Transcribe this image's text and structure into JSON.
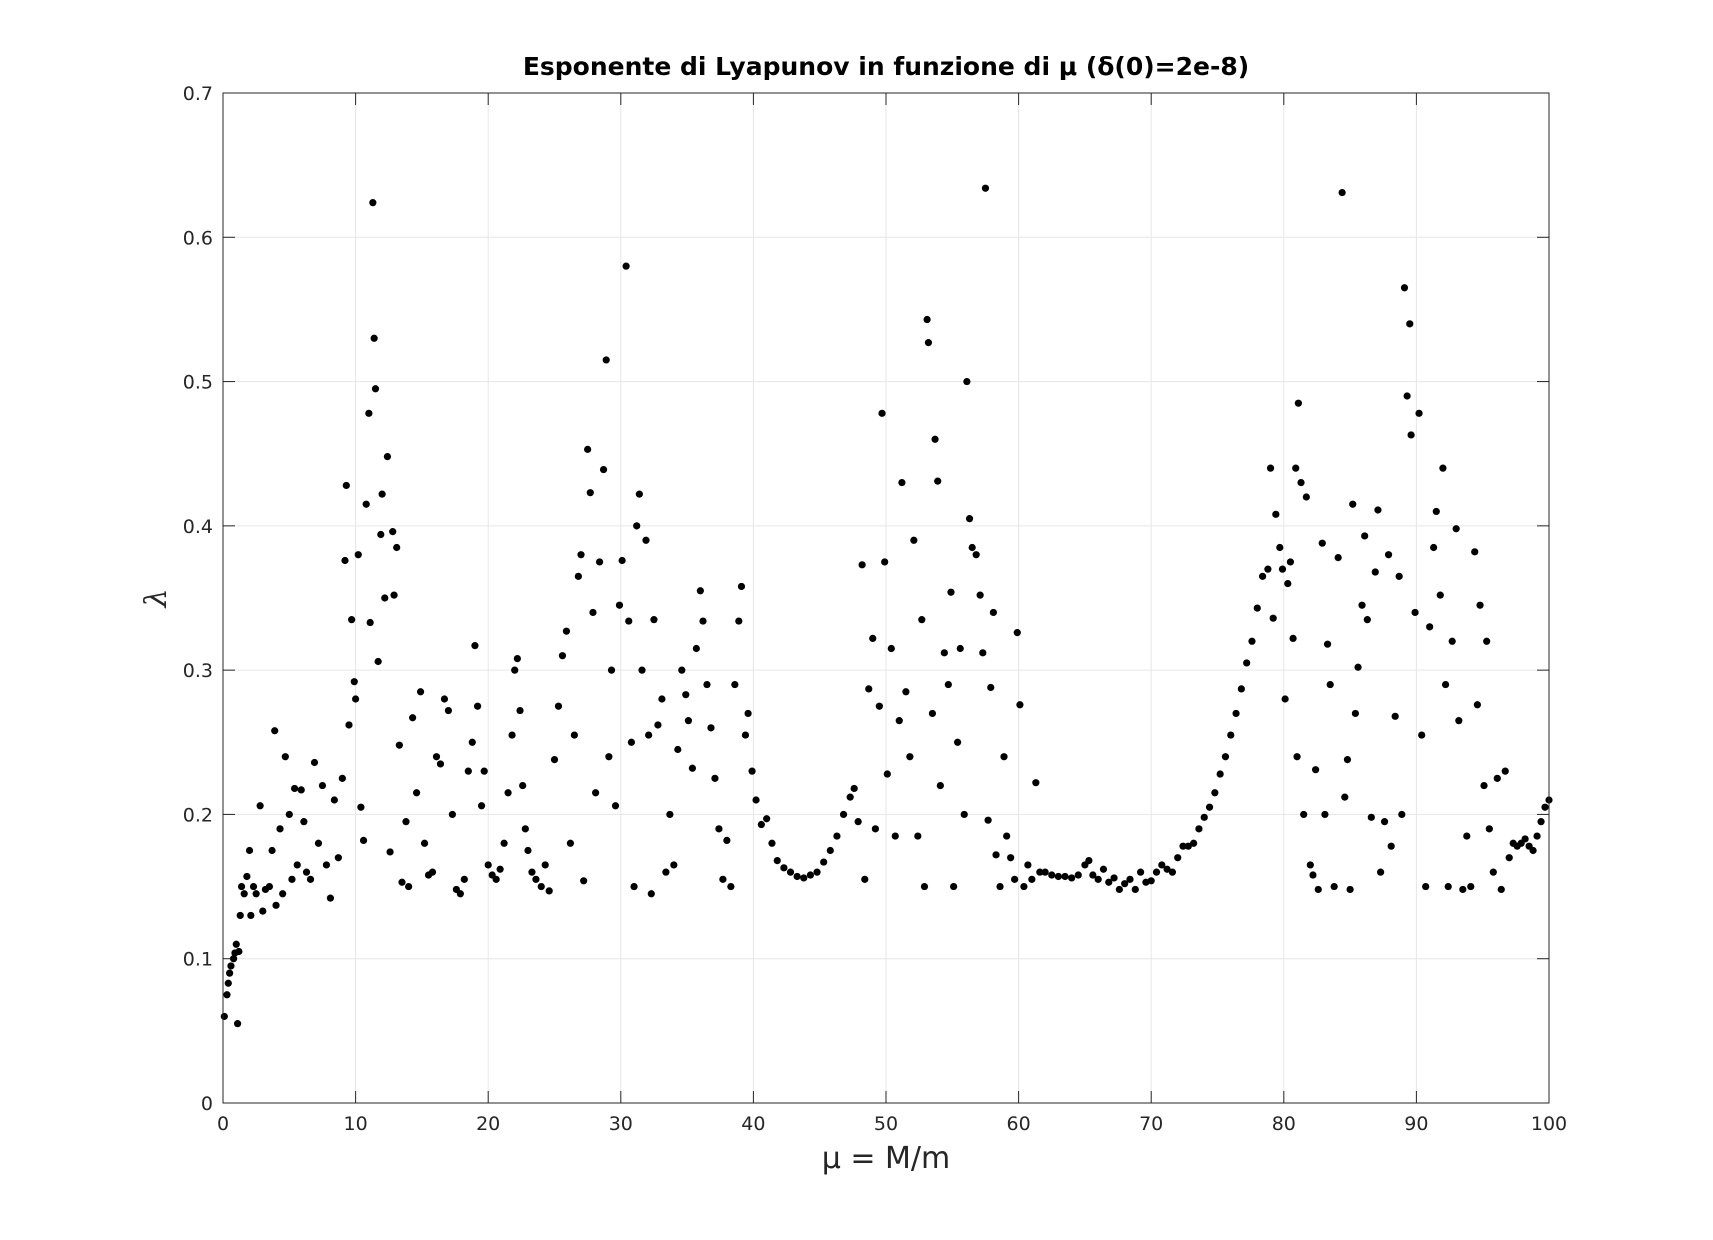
{
  "chart_data": {
    "type": "scatter",
    "title": "Esponente di Lyapunov in funzione di μ (δ(0)=2e-8)",
    "x_label": "μ = M/m",
    "y_label": "λ",
    "color": "#000000",
    "grid": true,
    "xlim": [
      0,
      100
    ],
    "xticks": [
      0,
      10,
      20,
      30,
      40,
      50,
      60,
      70,
      80,
      90,
      100
    ],
    "ylim": [
      0,
      0.7
    ],
    "yticks": [
      0,
      0.1,
      0.2,
      0.3,
      0.4,
      0.5,
      0.6,
      0.7
    ],
    "x": [
      0.1,
      0.3,
      0.4,
      0.5,
      0.6,
      0.8,
      0.9,
      1.0,
      1.1,
      1.2,
      1.3,
      1.4,
      1.6,
      1.8,
      2.0,
      2.1,
      2.3,
      2.5,
      2.8,
      3.0,
      3.2,
      3.5,
      3.7,
      3.9,
      4.0,
      4.3,
      4.5,
      4.7,
      5.0,
      5.2,
      5.4,
      5.6,
      5.9,
      6.1,
      6.3,
      6.6,
      6.9,
      7.2,
      7.5,
      7.8,
      8.1,
      8.4,
      8.7,
      9.0,
      9.2,
      9.3,
      9.5,
      9.7,
      9.9,
      10.0,
      10.2,
      10.4,
      10.6,
      10.8,
      11.0,
      11.1,
      11.3,
      11.4,
      11.5,
      11.7,
      11.9,
      12.0,
      12.2,
      12.4,
      12.6,
      12.8,
      12.9,
      13.1,
      13.3,
      13.5,
      13.8,
      14.0,
      14.3,
      14.6,
      14.9,
      15.2,
      15.5,
      15.8,
      16.1,
      16.4,
      16.7,
      17.0,
      17.3,
      17.6,
      17.9,
      18.2,
      18.5,
      18.8,
      19.0,
      19.2,
      19.5,
      19.7,
      20.0,
      20.3,
      20.6,
      20.9,
      21.2,
      21.5,
      21.8,
      22.0,
      22.2,
      22.4,
      22.6,
      22.8,
      23.0,
      23.3,
      23.6,
      24.0,
      24.3,
      24.6,
      25.0,
      25.3,
      25.6,
      25.9,
      26.2,
      26.5,
      26.8,
      27.0,
      27.2,
      27.5,
      27.7,
      27.9,
      28.1,
      28.4,
      28.7,
      28.9,
      29.1,
      29.3,
      29.6,
      29.9,
      30.1,
      30.4,
      30.6,
      30.8,
      31.0,
      31.2,
      31.4,
      31.6,
      31.9,
      32.1,
      32.3,
      32.5,
      32.8,
      33.1,
      33.4,
      33.7,
      34.0,
      34.3,
      34.6,
      34.9,
      35.1,
      35.4,
      35.7,
      36.0,
      36.2,
      36.5,
      36.8,
      37.1,
      37.4,
      37.7,
      38.0,
      38.3,
      38.6,
      38.9,
      39.1,
      39.4,
      39.6,
      39.9,
      40.2,
      40.6,
      41.0,
      41.4,
      41.8,
      42.3,
      42.8,
      43.3,
      43.8,
      44.3,
      44.8,
      45.3,
      45.8,
      46.3,
      46.8,
      47.3,
      47.6,
      47.9,
      48.2,
      48.4,
      48.7,
      49.0,
      49.2,
      49.5,
      49.7,
      49.9,
      50.1,
      50.4,
      50.7,
      51.0,
      51.2,
      51.5,
      51.8,
      52.1,
      52.4,
      52.7,
      52.9,
      53.1,
      53.2,
      53.5,
      53.7,
      53.9,
      54.1,
      54.4,
      54.7,
      54.9,
      55.1,
      55.4,
      55.6,
      55.9,
      56.1,
      56.3,
      56.5,
      56.8,
      57.1,
      57.3,
      57.5,
      57.7,
      57.9,
      58.1,
      58.3,
      58.6,
      58.9,
      59.1,
      59.4,
      59.7,
      59.9,
      60.1,
      60.4,
      60.7,
      61.0,
      61.3,
      61.6,
      62.0,
      62.5,
      63.0,
      63.5,
      64.0,
      64.5,
      65.0,
      65.3,
      65.6,
      66.0,
      66.4,
      66.8,
      67.2,
      67.6,
      68.0,
      68.4,
      68.8,
      69.2,
      69.6,
      70.0,
      70.4,
      70.8,
      71.2,
      71.6,
      72.0,
      72.4,
      72.8,
      73.2,
      73.6,
      74.0,
      74.4,
      74.8,
      75.2,
      75.6,
      76.0,
      76.4,
      76.8,
      77.2,
      77.6,
      78.0,
      78.4,
      78.8,
      79.0,
      79.2,
      79.4,
      79.7,
      79.9,
      80.1,
      80.3,
      80.5,
      80.7,
      80.9,
      81.0,
      81.1,
      81.3,
      81.5,
      81.7,
      82.0,
      82.2,
      82.4,
      82.6,
      82.9,
      83.1,
      83.3,
      83.5,
      83.8,
      84.1,
      84.4,
      84.6,
      84.8,
      85.0,
      85.2,
      85.4,
      85.6,
      85.9,
      86.1,
      86.3,
      86.6,
      86.9,
      87.1,
      87.3,
      87.6,
      87.9,
      88.1,
      88.4,
      88.7,
      88.9,
      89.1,
      89.3,
      89.5,
      89.6,
      89.9,
      90.2,
      90.4,
      90.7,
      91.0,
      91.3,
      91.5,
      91.8,
      92.0,
      92.2,
      92.4,
      92.7,
      93.0,
      93.2,
      93.5,
      93.8,
      94.1,
      94.4,
      94.6,
      94.8,
      95.1,
      95.3,
      95.5,
      95.8,
      96.1,
      96.4,
      96.7,
      97.0,
      97.3,
      97.6,
      97.9,
      98.2,
      98.5,
      98.8,
      99.1,
      99.4,
      99.7,
      100
    ],
    "values": [
      0.06,
      0.075,
      0.083,
      0.09,
      0.095,
      0.1,
      0.104,
      0.11,
      0.055,
      0.105,
      0.13,
      0.15,
      0.145,
      0.157,
      0.175,
      0.13,
      0.15,
      0.145,
      0.206,
      0.133,
      0.148,
      0.15,
      0.175,
      0.258,
      0.137,
      0.19,
      0.145,
      0.24,
      0.2,
      0.155,
      0.218,
      0.165,
      0.217,
      0.195,
      0.16,
      0.155,
      0.236,
      0.18,
      0.22,
      0.165,
      0.142,
      0.21,
      0.17,
      0.225,
      0.376,
      0.428,
      0.262,
      0.335,
      0.292,
      0.28,
      0.38,
      0.205,
      0.182,
      0.415,
      0.478,
      0.333,
      0.624,
      0.53,
      0.495,
      0.306,
      0.394,
      0.422,
      0.35,
      0.448,
      0.174,
      0.396,
      0.352,
      0.385,
      0.248,
      0.153,
      0.195,
      0.15,
      0.267,
      0.215,
      0.285,
      0.18,
      0.158,
      0.16,
      0.24,
      0.235,
      0.28,
      0.272,
      0.2,
      0.148,
      0.145,
      0.155,
      0.23,
      0.25,
      0.317,
      0.275,
      0.206,
      0.23,
      0.165,
      0.158,
      0.155,
      0.162,
      0.18,
      0.215,
      0.255,
      0.3,
      0.308,
      0.272,
      0.22,
      0.19,
      0.175,
      0.16,
      0.155,
      0.15,
      0.165,
      0.147,
      0.238,
      0.275,
      0.31,
      0.327,
      0.18,
      0.255,
      0.365,
      0.38,
      0.154,
      0.453,
      0.423,
      0.34,
      0.215,
      0.375,
      0.439,
      0.515,
      0.24,
      0.3,
      0.206,
      0.345,
      0.376,
      0.58,
      0.334,
      0.25,
      0.15,
      0.4,
      0.422,
      0.3,
      0.39,
      0.255,
      0.145,
      0.335,
      0.262,
      0.28,
      0.16,
      0.2,
      0.165,
      0.245,
      0.3,
      0.283,
      0.265,
      0.232,
      0.315,
      0.355,
      0.334,
      0.29,
      0.26,
      0.225,
      0.19,
      0.155,
      0.182,
      0.15,
      0.29,
      0.334,
      0.358,
      0.255,
      0.27,
      0.23,
      0.21,
      0.193,
      0.197,
      0.18,
      0.168,
      0.163,
      0.16,
      0.157,
      0.156,
      0.158,
      0.16,
      0.167,
      0.175,
      0.185,
      0.2,
      0.212,
      0.218,
      0.195,
      0.373,
      0.155,
      0.287,
      0.322,
      0.19,
      0.275,
      0.478,
      0.375,
      0.228,
      0.315,
      0.185,
      0.265,
      0.43,
      0.285,
      0.24,
      0.39,
      0.185,
      0.335,
      0.15,
      0.543,
      0.527,
      0.27,
      0.46,
      0.431,
      0.22,
      0.312,
      0.29,
      0.354,
      0.15,
      0.25,
      0.315,
      0.2,
      0.5,
      0.405,
      0.385,
      0.38,
      0.352,
      0.312,
      0.634,
      0.196,
      0.288,
      0.34,
      0.172,
      0.15,
      0.24,
      0.185,
      0.17,
      0.155,
      0.326,
      0.276,
      0.15,
      0.165,
      0.155,
      0.222,
      0.16,
      0.16,
      0.158,
      0.157,
      0.157,
      0.156,
      0.158,
      0.165,
      0.168,
      0.158,
      0.155,
      0.162,
      0.153,
      0.156,
      0.148,
      0.152,
      0.155,
      0.148,
      0.16,
      0.153,
      0.154,
      0.16,
      0.165,
      0.162,
      0.16,
      0.17,
      0.178,
      0.178,
      0.18,
      0.19,
      0.198,
      0.205,
      0.215,
      0.228,
      0.24,
      0.255,
      0.27,
      0.287,
      0.305,
      0.32,
      0.343,
      0.365,
      0.37,
      0.44,
      0.336,
      0.408,
      0.385,
      0.37,
      0.28,
      0.36,
      0.375,
      0.322,
      0.44,
      0.24,
      0.485,
      0.43,
      0.2,
      0.42,
      0.165,
      0.158,
      0.231,
      0.148,
      0.388,
      0.2,
      0.318,
      0.29,
      0.15,
      0.378,
      0.631,
      0.212,
      0.238,
      0.148,
      0.415,
      0.27,
      0.302,
      0.345,
      0.393,
      0.335,
      0.198,
      0.368,
      0.411,
      0.16,
      0.195,
      0.38,
      0.178,
      0.268,
      0.365,
      0.2,
      0.565,
      0.49,
      0.54,
      0.463,
      0.34,
      0.478,
      0.255,
      0.15,
      0.33,
      0.385,
      0.41,
      0.352,
      0.44,
      0.29,
      0.15,
      0.32,
      0.398,
      0.265,
      0.148,
      0.185,
      0.15,
      0.382,
      0.276,
      0.345,
      0.22,
      0.32,
      0.19,
      0.16,
      0.225,
      0.148,
      0.23,
      0.17,
      0.18,
      0.178,
      0.18,
      0.183,
      0.178,
      0.175,
      0.185,
      0.195,
      0.205,
      0.21
    ]
  }
}
